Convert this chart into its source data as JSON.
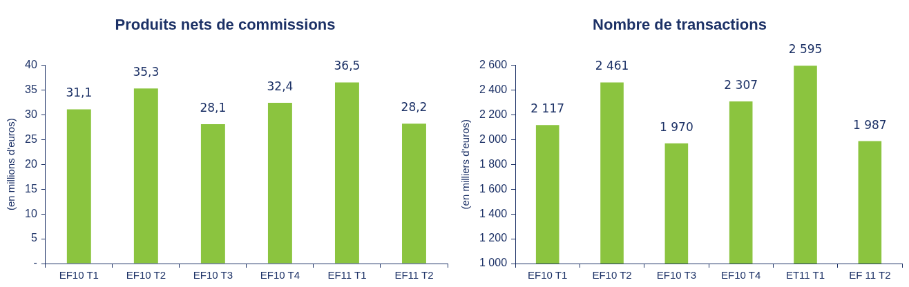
{
  "chart_data": [
    {
      "type": "bar",
      "title": "Produits nets de commissions",
      "ylabel": "(en millions d'euros)",
      "categories": [
        "EF10 T1",
        "EF10 T2",
        "EF10 T3",
        "EF10 T4",
        "EF11 T1",
        "EF11 T2"
      ],
      "values": [
        31.1,
        35.3,
        28.1,
        32.4,
        36.5,
        28.2
      ],
      "color": "#8bc43f",
      "value_labels": [
        "31,1",
        "35,3",
        "28,1",
        "32,4",
        "36,5",
        "28,2"
      ],
      "ylim": [
        0,
        40
      ],
      "yticks": [
        {
          "value": 0,
          "label": "-"
        },
        5,
        10,
        15,
        20,
        25,
        30,
        35,
        40
      ],
      "grid": false
    },
    {
      "type": "bar",
      "title": "Nombre de transactions",
      "ylabel": "(en milliers d'euros)",
      "categories": [
        "EF10 T1",
        "EF10 T2",
        "EF10 T3",
        "EF10 T4",
        "ET11 T1",
        "EF 11 T2"
      ],
      "values": [
        2117,
        2461,
        1970,
        2307,
        2595,
        1987
      ],
      "color": "#8bc43f",
      "value_labels": [
        "2 117",
        "2 461",
        "1 970",
        "2 307",
        "2 595",
        "1 987"
      ],
      "ylim": [
        1000,
        2600
      ],
      "yticks": [
        {
          "value": 1000,
          "label": "1 000"
        },
        {
          "value": 1200,
          "label": "1 200"
        },
        {
          "value": 1400,
          "label": "1 400"
        },
        {
          "value": 1600,
          "label": "1 600"
        },
        {
          "value": 1800,
          "label": "1 800"
        },
        {
          "value": 2000,
          "label": "2 000"
        },
        {
          "value": 2200,
          "label": "2 200"
        },
        {
          "value": 2400,
          "label": "2 400"
        },
        {
          "value": 2600,
          "label": "2 600"
        }
      ],
      "grid": false
    }
  ]
}
